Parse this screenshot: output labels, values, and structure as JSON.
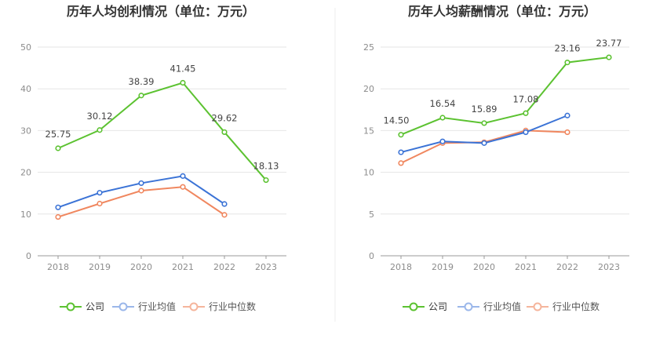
{
  "chart_data": [
    {
      "type": "line",
      "title": "历年人均创利情况（单位：万元）",
      "categories": [
        "2018",
        "2019",
        "2020",
        "2021",
        "2022",
        "2023"
      ],
      "ylim": [
        0,
        50
      ],
      "yticks": [
        0,
        10,
        20,
        30,
        40,
        50
      ],
      "grid": true,
      "legend_position": "bottom",
      "series": [
        {
          "name": "公司",
          "color": "#5cc231",
          "values": [
            25.75,
            30.12,
            38.39,
            41.45,
            29.62,
            18.13
          ],
          "labels": [
            "25.75",
            "30.12",
            "38.39",
            "41.45",
            "29.62",
            "18.13"
          ]
        },
        {
          "name": "行业均值",
          "color": "#3b73d6",
          "values": [
            11.6,
            15.1,
            17.4,
            19.1,
            12.4,
            null
          ]
        },
        {
          "name": "行业中位数",
          "color": "#f0875f",
          "values": [
            9.3,
            12.5,
            15.6,
            16.5,
            9.8,
            null
          ]
        }
      ]
    },
    {
      "type": "line",
      "title": "历年人均薪酬情况（单位：万元）",
      "categories": [
        "2018",
        "2019",
        "2020",
        "2021",
        "2022",
        "2023"
      ],
      "ylim": [
        0,
        25
      ],
      "yticks": [
        0,
        5,
        10,
        15,
        20,
        25
      ],
      "grid": true,
      "legend_position": "bottom",
      "series": [
        {
          "name": "公司",
          "color": "#5cc231",
          "values": [
            14.5,
            16.54,
            15.89,
            17.08,
            23.16,
            23.77
          ],
          "labels": [
            "14.50",
            "16.54",
            "15.89",
            "17.08",
            "23.16",
            "23.77"
          ]
        },
        {
          "name": "行业均值",
          "color": "#3b73d6",
          "values": [
            12.4,
            13.7,
            13.5,
            14.8,
            16.8,
            null
          ]
        },
        {
          "name": "行业中位数",
          "color": "#f0875f",
          "values": [
            11.1,
            13.5,
            13.6,
            15.0,
            14.8,
            null
          ]
        }
      ]
    }
  ]
}
